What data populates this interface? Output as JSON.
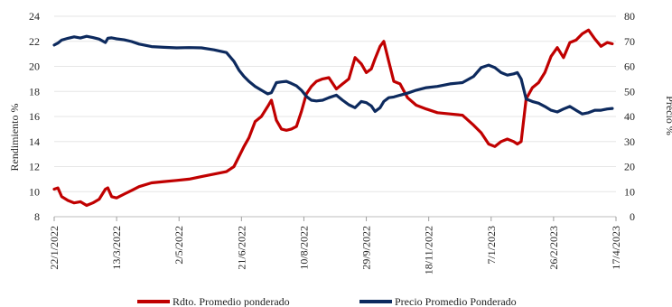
{
  "chart_data": {
    "type": "line",
    "title": "",
    "ylabel_left": "Rendimiento %",
    "ylabel_right": "Precio %",
    "ylim_left": [
      8,
      24
    ],
    "yticks_left": [
      "8",
      "10",
      "12",
      "14",
      "16",
      "18",
      "20",
      "22",
      "24"
    ],
    "ylim_right": [
      0,
      80
    ],
    "yticks_right": [
      "0",
      "10",
      "20",
      "30",
      "40",
      "50",
      "60",
      "70",
      "80"
    ],
    "xlim": [
      "22/1/2022",
      "17/4/2023"
    ],
    "xtick_labels": [
      "22/1/2022",
      "13/3/2022",
      "2/5/2022",
      "21/6/2022",
      "10/8/2022",
      "29/9/2022",
      "18/11/2022",
      "7/1/2023",
      "26/2/2023",
      "17/4/2023"
    ],
    "legend_position": "bottom",
    "series": [
      {
        "name": "Rdto. Promedio ponderado",
        "axis": "left",
        "color": "#c00000",
        "x": [
          "22/1/2022",
          "25/1/2022",
          "28/1/2022",
          "2/2/2022",
          "7/2/2022",
          "12/2/2022",
          "17/2/2022",
          "22/2/2022",
          "27/2/2022",
          "4/3/2022",
          "6/3/2022",
          "9/3/2022",
          "13/3/2022",
          "19/3/2022",
          "25/3/2022",
          "31/3/2022",
          "10/4/2022",
          "20/4/2022",
          "30/4/2022",
          "10/5/2022",
          "20/5/2022",
          "30/5/2022",
          "9/6/2022",
          "15/6/2022",
          "19/6/2022",
          "23/6/2022",
          "27/6/2022",
          "2/7/2022",
          "7/7/2022",
          "12/7/2022",
          "15/7/2022",
          "19/7/2022",
          "23/7/2022",
          "27/7/2022",
          "31/7/2022",
          "4/8/2022",
          "8/8/2022",
          "12/8/2022",
          "16/8/2022",
          "20/8/2022",
          "25/8/2022",
          "30/8/2022",
          "5/9/2022",
          "10/9/2022",
          "15/9/2022",
          "20/9/2022",
          "25/9/2022",
          "29/9/2022",
          "3/10/2022",
          "6/10/2022",
          "10/10/2022",
          "13/10/2022",
          "17/10/2022",
          "21/10/2022",
          "26/10/2022",
          "1/11/2022",
          "8/11/2022",
          "16/11/2022",
          "25/11/2022",
          "5/12/2022",
          "15/12/2022",
          "24/12/2022",
          "30/12/2022",
          "5/1/2023",
          "10/1/2023",
          "15/1/2023",
          "20/1/2023",
          "25/1/2023",
          "28/1/2023",
          "31/1/2023",
          "4/2/2023",
          "9/2/2023",
          "14/2/2023",
          "19/2/2023",
          "24/2/2023",
          "1/3/2023",
          "6/3/2023",
          "11/3/2023",
          "16/3/2023",
          "21/3/2023",
          "26/3/2023",
          "31/3/2023",
          "5/4/2023",
          "10/4/2023",
          "14/4/2023"
        ],
        "values": [
          10.2,
          10.3,
          9.6,
          9.3,
          9.1,
          9.2,
          8.9,
          9.1,
          9.4,
          10.2,
          10.3,
          9.6,
          9.5,
          9.8,
          10.1,
          10.4,
          10.7,
          10.8,
          10.9,
          11.0,
          11.2,
          11.4,
          11.6,
          12.0,
          12.8,
          13.6,
          14.3,
          15.6,
          16.0,
          16.8,
          17.3,
          15.7,
          15.0,
          14.9,
          15.0,
          15.2,
          16.4,
          17.8,
          18.4,
          18.8,
          19.0,
          19.1,
          18.2,
          18.6,
          19.0,
          20.7,
          20.2,
          19.5,
          19.8,
          20.6,
          21.6,
          22.0,
          20.4,
          18.8,
          18.6,
          17.5,
          16.9,
          16.6,
          16.3,
          16.2,
          16.1,
          15.3,
          14.7,
          13.8,
          13.6,
          14.0,
          14.2,
          14.0,
          13.8,
          14.0,
          17.4,
          18.3,
          18.7,
          19.5,
          20.8,
          21.5,
          20.7,
          21.9,
          22.1,
          22.6,
          22.9,
          22.2,
          21.6,
          21.9,
          21.8
        ]
      },
      {
        "name": "Precio Promedio Ponderado",
        "axis": "right",
        "color": "#0d2a5e",
        "x": [
          "22/1/2022",
          "25/1/2022",
          "28/1/2022",
          "2/2/2022",
          "7/2/2022",
          "12/2/2022",
          "17/2/2022",
          "22/2/2022",
          "27/2/2022",
          "4/3/2022",
          "6/3/2022",
          "9/3/2022",
          "13/3/2022",
          "19/3/2022",
          "25/3/2022",
          "31/3/2022",
          "10/4/2022",
          "20/4/2022",
          "30/4/2022",
          "10/5/2022",
          "20/5/2022",
          "30/5/2022",
          "9/6/2022",
          "15/6/2022",
          "19/6/2022",
          "23/6/2022",
          "27/6/2022",
          "2/7/2022",
          "7/7/2022",
          "12/7/2022",
          "15/7/2022",
          "19/7/2022",
          "23/7/2022",
          "27/7/2022",
          "31/7/2022",
          "4/8/2022",
          "8/8/2022",
          "12/8/2022",
          "16/8/2022",
          "20/8/2022",
          "25/8/2022",
          "30/8/2022",
          "5/9/2022",
          "10/9/2022",
          "15/9/2022",
          "20/9/2022",
          "25/9/2022",
          "29/9/2022",
          "3/10/2022",
          "6/10/2022",
          "10/10/2022",
          "13/10/2022",
          "17/10/2022",
          "21/10/2022",
          "26/10/2022",
          "1/11/2022",
          "8/11/2022",
          "16/11/2022",
          "25/11/2022",
          "5/12/2022",
          "15/12/2022",
          "24/12/2022",
          "30/12/2022",
          "5/1/2023",
          "10/1/2023",
          "15/1/2023",
          "20/1/2023",
          "25/1/2023",
          "28/1/2023",
          "31/1/2023",
          "4/2/2023",
          "9/2/2023",
          "14/2/2023",
          "19/2/2023",
          "24/2/2023",
          "1/3/2023",
          "6/3/2023",
          "11/3/2023",
          "16/3/2023",
          "21/3/2023",
          "26/3/2023",
          "31/3/2023",
          "5/4/2023",
          "10/4/2023",
          "14/4/2023"
        ],
        "values": [
          68.5,
          69.3,
          70.5,
          71.2,
          71.8,
          71.3,
          72.0,
          71.5,
          70.9,
          69.5,
          71.2,
          71.4,
          71.0,
          70.6,
          69.9,
          68.9,
          67.9,
          67.6,
          67.4,
          67.5,
          67.4,
          66.6,
          65.5,
          62.0,
          58.5,
          56.0,
          54.0,
          52.0,
          50.5,
          49.0,
          49.5,
          53.5,
          53.8,
          54.0,
          53.2,
          52.2,
          50.5,
          48.0,
          46.5,
          46.2,
          46.5,
          47.5,
          48.5,
          46.5,
          44.7,
          43.5,
          46.0,
          45.5,
          44.2,
          42.0,
          43.5,
          46.0,
          47.5,
          47.8,
          48.5,
          49.3,
          50.5,
          51.5,
          52.0,
          53.0,
          53.5,
          56.0,
          59.5,
          60.5,
          59.5,
          57.5,
          56.5,
          57.0,
          57.5,
          55.0,
          47.0,
          46.0,
          45.3,
          44.0,
          42.5,
          41.8,
          43.0,
          44.0,
          42.5,
          41.0,
          41.5,
          42.5,
          42.5,
          43.0,
          43.2
        ]
      }
    ]
  }
}
